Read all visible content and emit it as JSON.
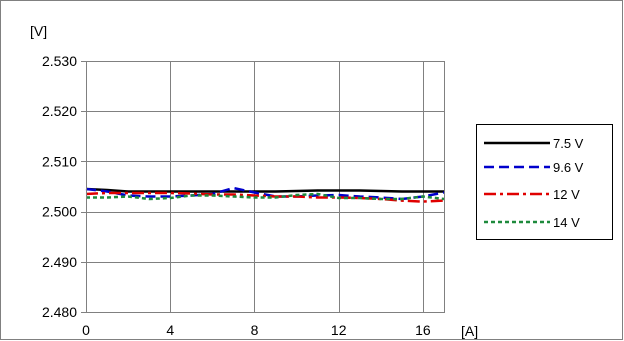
{
  "chart_data": {
    "type": "line",
    "title": "",
    "ylabel": "[V]",
    "xlabel": "[A]",
    "xlim": [
      0,
      17
    ],
    "ylim": [
      2.48,
      2.53
    ],
    "x_ticks": [
      0,
      4,
      8,
      12,
      16
    ],
    "x_tick_labels": [
      "0",
      "4",
      "8",
      "12",
      "16"
    ],
    "y_ticks": [
      2.48,
      2.49,
      2.5,
      2.51,
      2.52,
      2.53
    ],
    "y_tick_labels": [
      "2.480",
      "2.490",
      "2.500",
      "2.510",
      "2.520",
      "2.530"
    ],
    "grid": true,
    "legend_position": "right",
    "series": [
      {
        "name": "7.5 V",
        "color": "#000000",
        "dash": "solid",
        "x": [
          0,
          1,
          2,
          3,
          4,
          5,
          6,
          7,
          8,
          9,
          10,
          11,
          12,
          13,
          14,
          15,
          16,
          17
        ],
        "y": [
          2.5045,
          2.5043,
          2.504,
          2.504,
          2.504,
          2.504,
          2.504,
          2.504,
          2.504,
          2.504,
          2.5041,
          2.5042,
          2.5042,
          2.5042,
          2.5041,
          2.504,
          2.504,
          2.504
        ]
      },
      {
        "name": "9.6 V",
        "color": "#0000cc",
        "dash": "dashed",
        "x": [
          0,
          1,
          2,
          3,
          4,
          5,
          6,
          7,
          8,
          9,
          10,
          11,
          12,
          13,
          14,
          15,
          16,
          17
        ],
        "y": [
          2.5045,
          2.504,
          2.5032,
          2.503,
          2.503,
          2.5032,
          2.5035,
          2.5047,
          2.5038,
          2.503,
          2.503,
          2.5032,
          2.5033,
          2.503,
          2.5028,
          2.5025,
          2.503,
          2.5038
        ]
      },
      {
        "name": "12 V",
        "color": "#e00000",
        "dash": "dashdot",
        "x": [
          0,
          1,
          2,
          3,
          4,
          5,
          6,
          7,
          8,
          9,
          10,
          11,
          12,
          13,
          14,
          15,
          16,
          17
        ],
        "y": [
          2.5035,
          2.5037,
          2.5037,
          2.5037,
          2.5037,
          2.5036,
          2.5034,
          2.5034,
          2.5032,
          2.503,
          2.503,
          2.5028,
          2.5028,
          2.5027,
          2.5025,
          2.5022,
          2.502,
          2.5022
        ]
      },
      {
        "name": "14 V",
        "color": "#1e8a3c",
        "dash": "dotted",
        "x": [
          0,
          1,
          2,
          3,
          4,
          5,
          6,
          7,
          8,
          9,
          10,
          11,
          12,
          13,
          14,
          15,
          16,
          17
        ],
        "y": [
          2.5028,
          2.5028,
          2.503,
          2.5025,
          2.5027,
          2.5032,
          2.5032,
          2.503,
          2.5028,
          2.5028,
          2.5033,
          2.5035,
          2.5027,
          2.5027,
          2.5025,
          2.5025,
          2.503,
          2.5025
        ]
      }
    ]
  }
}
